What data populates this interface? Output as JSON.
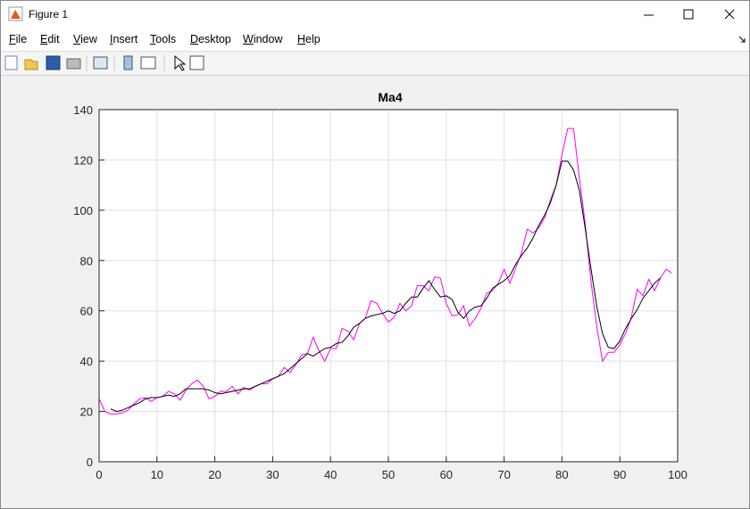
{
  "window": {
    "title": "Figure 1",
    "menu": [
      "File",
      "Edit",
      "View",
      "Insert",
      "Tools",
      "Desktop",
      "Window",
      "Help"
    ]
  },
  "chart_data": {
    "type": "line",
    "title": "Ma4",
    "xlim": [
      0,
      100
    ],
    "xticks": [
      0,
      10,
      20,
      30,
      40,
      50,
      60,
      70,
      80,
      90,
      100
    ],
    "ylim": [
      0,
      140
    ],
    "yticks": [
      0,
      20,
      40,
      60,
      80,
      100,
      120,
      140
    ],
    "grid": true,
    "series": [
      {
        "color": "#ff00ff",
        "x": [
          0,
          1,
          2,
          3,
          4,
          5,
          6,
          7,
          8,
          9,
          10,
          11,
          12,
          13,
          14,
          15,
          16,
          17,
          18,
          19,
          20,
          21,
          22,
          23,
          24,
          25,
          26,
          27,
          28,
          29,
          30,
          31,
          32,
          33,
          34,
          35,
          36,
          37,
          38,
          39,
          40,
          41,
          42,
          43,
          44,
          45,
          46,
          47,
          48,
          49,
          50,
          51,
          52,
          53,
          54,
          55,
          56,
          57,
          58,
          59,
          60,
          61,
          62,
          63,
          64,
          65,
          66,
          67,
          68,
          69,
          70,
          71,
          72,
          73,
          74,
          75,
          76,
          77,
          78,
          79,
          80,
          81,
          82,
          83,
          84,
          85,
          86,
          87,
          88,
          89,
          90,
          91,
          92,
          93,
          94,
          95,
          96,
          97,
          98,
          99
        ],
        "values": [
          25,
          20,
          19,
          19,
          19.5,
          20.5,
          23,
          25,
          25.5,
          24,
          25.5,
          26,
          28,
          27,
          24.5,
          28.5,
          31,
          32.5,
          30,
          25,
          26,
          28,
          28,
          30,
          27,
          29.5,
          28.5,
          30,
          31,
          31,
          33,
          34,
          37.5,
          35.5,
          38.5,
          42.5,
          43,
          49.5,
          44,
          40,
          45,
          45,
          53,
          52,
          48.5,
          55,
          57,
          64,
          63,
          59,
          55.5,
          57.5,
          63,
          60,
          62,
          70,
          70,
          68,
          73.5,
          73,
          63,
          58,
          58.5,
          62,
          54,
          57,
          61,
          67,
          68,
          71,
          76.5,
          71,
          77,
          83,
          92.5,
          91,
          93,
          97,
          104,
          110,
          122,
          132.5,
          132.5,
          113,
          95,
          72,
          54,
          40,
          43.5,
          43.5,
          46.5,
          51,
          57.5,
          68.5,
          66,
          72.5,
          68,
          73,
          76.5,
          75
        ]
      },
      {
        "color": "#000000",
        "x": [
          2,
          3,
          4,
          5,
          6,
          7,
          8,
          9,
          10,
          11,
          12,
          13,
          14,
          15,
          16,
          17,
          18,
          19,
          20,
          21,
          22,
          23,
          24,
          25,
          26,
          27,
          28,
          29,
          30,
          31,
          32,
          33,
          34,
          35,
          36,
          37,
          38,
          39,
          40,
          41,
          42,
          43,
          44,
          45,
          46,
          47,
          48,
          49,
          50,
          51,
          52,
          53,
          54,
          55,
          56,
          57,
          58,
          59,
          60,
          61,
          62,
          63,
          64,
          65,
          66,
          67,
          68,
          69,
          70,
          71,
          72,
          73,
          74,
          75,
          76,
          77,
          78,
          79,
          80,
          81,
          82,
          83,
          84,
          85,
          86,
          87,
          88,
          89,
          90,
          91,
          92,
          93,
          94,
          95,
          96,
          97
        ],
        "values": [
          21,
          20,
          20.5,
          21.5,
          22.5,
          23.5,
          25,
          25.5,
          25.5,
          26,
          26.5,
          26,
          27,
          29,
          29,
          29,
          29,
          28.5,
          27.5,
          27,
          27.5,
          28,
          28.5,
          29,
          29,
          30,
          31,
          32,
          33,
          34,
          35,
          37,
          39,
          41,
          43,
          42,
          43.5,
          45,
          45.5,
          47,
          47.5,
          50,
          53.5,
          55,
          57,
          58,
          58.5,
          59,
          60,
          59,
          60,
          63,
          65.5,
          65.5,
          69,
          72,
          68.5,
          65.5,
          66,
          64.5,
          59.5,
          57,
          60,
          61.5,
          62,
          65,
          69,
          70.5,
          72,
          74,
          78.5,
          82,
          85,
          89,
          94,
          98,
          103,
          110,
          119.5,
          119.5,
          116,
          108,
          93,
          77,
          62,
          51,
          45.5,
          45,
          48,
          53,
          57,
          60.5,
          65,
          68,
          71,
          73
        ]
      }
    ]
  }
}
